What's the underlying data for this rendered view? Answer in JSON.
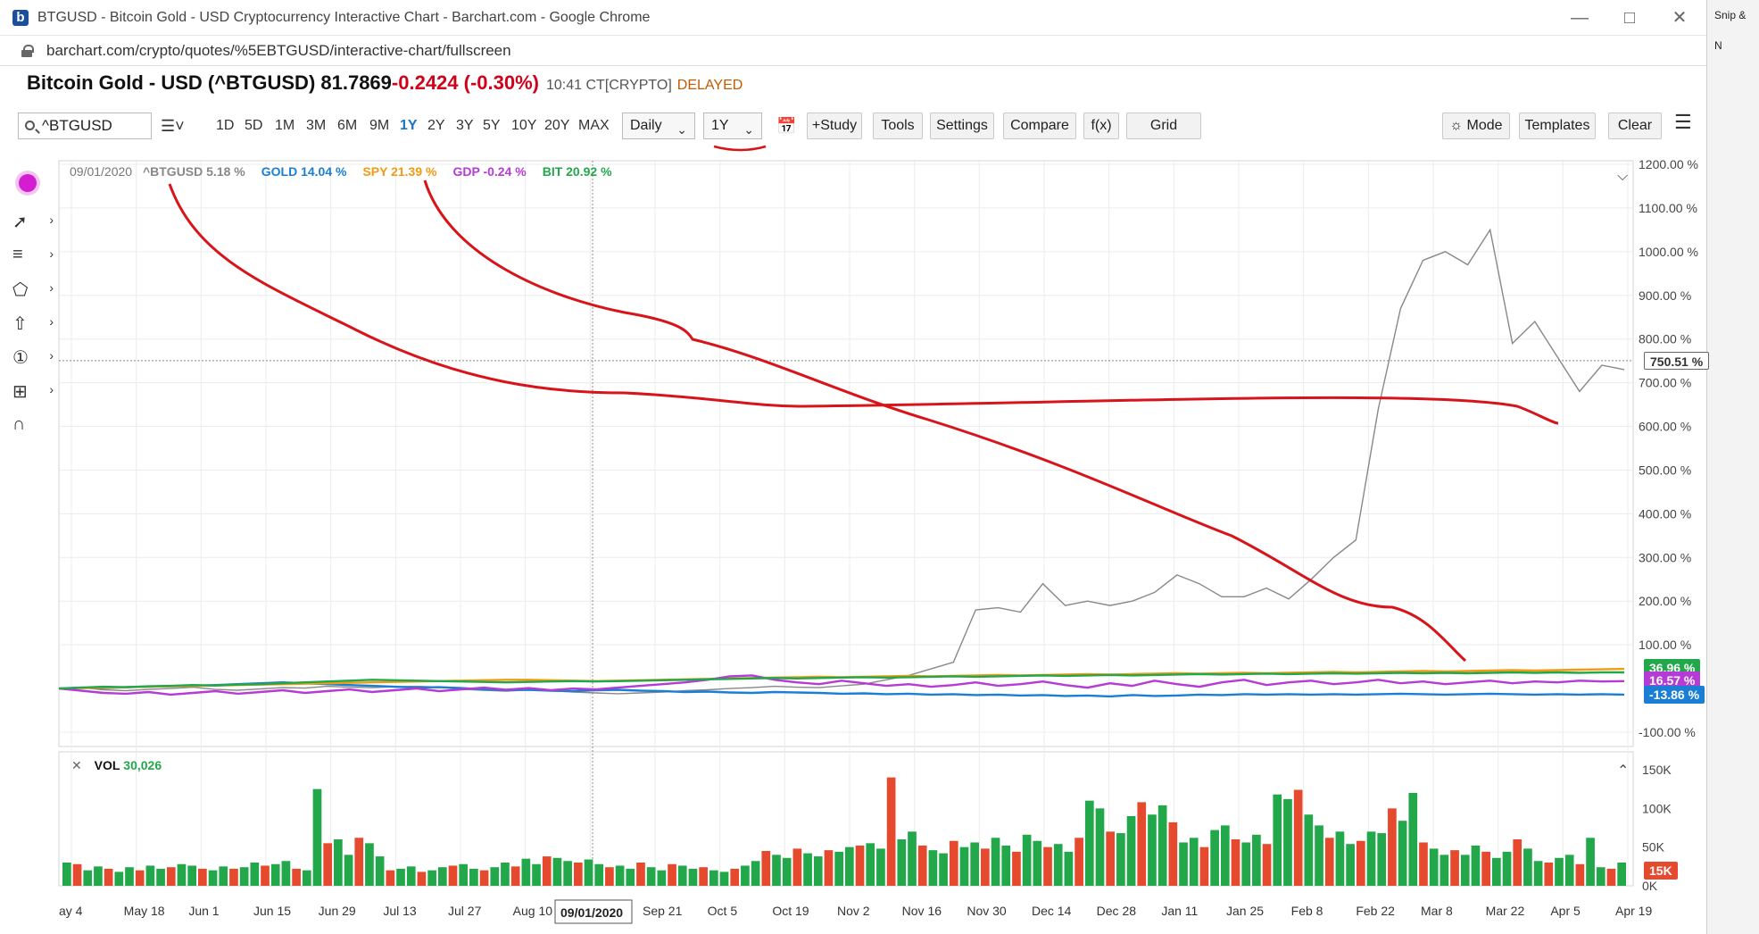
{
  "browser": {
    "tab_title": "BTGUSD - Bitcoin Gold - USD Cryptocurrency Interactive Chart - Barchart.com - Google Chrome",
    "url": "barchart.com/crypto/quotes/%5EBTGUSD/interactive-chart/fullscreen",
    "favicon_letter": "b"
  },
  "side_window": {
    "line1": "Snip &",
    "line2": "N"
  },
  "quote": {
    "name": "Bitcoin Gold - USD (^BTGUSD) 81.7869",
    "change": "-0.2424 (-0.30%)",
    "time": "10:41 CT[CRYPTO]",
    "status": "DELAYED"
  },
  "toolbar": {
    "symbol": "^BTGUSD",
    "periods": [
      "1D",
      "5D",
      "1M",
      "3M",
      "6M",
      "9M",
      "1Y",
      "2Y",
      "3Y",
      "5Y",
      "10Y",
      "20Y",
      "MAX"
    ],
    "active_period": "1Y",
    "interval": "Daily",
    "range": "1Y",
    "study": "+Study",
    "tools": "Tools",
    "settings": "Settings",
    "compare": "Compare",
    "fx": "f(x)",
    "grid": "Grid",
    "mode": "Mode",
    "templates": "Templates",
    "clear": "Clear"
  },
  "legend": {
    "date": "09/01/2020",
    "items": [
      {
        "label": "^BTGUSD 5.18 %",
        "color": "#888888"
      },
      {
        "label": "GOLD 14.04 %",
        "color": "#1a7fd4"
      },
      {
        "label": "SPY 21.39 %",
        "color": "#f39a12"
      },
      {
        "label": "GDP -0.24 %",
        "color": "#b63ad6"
      },
      {
        "label": "BIT 20.92 %",
        "color": "#22a84a"
      }
    ]
  },
  "chart_data": {
    "type": "line",
    "title": "",
    "y_axis": {
      "unit": "%",
      "ticks": [
        "1200.00 %",
        "1100.00 %",
        "1000.00 %",
        "900.00 %",
        "800.00 %",
        "700.00 %",
        "600.00 %",
        "500.00 %",
        "400.00 %",
        "300.00 %",
        "200.00 %",
        "100.00 %",
        "-100.00 %"
      ],
      "ylim": [
        -100,
        1200
      ]
    },
    "x_axis": {
      "ticks": [
        "ay 4",
        "May 18",
        "Jun 1",
        "Jun 15",
        "Jun 29",
        "Jul 13",
        "Jul 27",
        "Aug 10",
        "Au",
        "Sep 21",
        "Oct 5",
        "Oct 19",
        "Nov 2",
        "Nov 16",
        "Nov 30",
        "Dec 14",
        "Dec 28",
        "Jan 11",
        "Jan 25",
        "Feb 8",
        "Feb 22",
        "Mar 8",
        "Mar 22",
        "Apr 5",
        "Apr 19"
      ],
      "cursor_label": "09/01/2020"
    },
    "crosshair_value": "750.51 %",
    "badges": [
      {
        "label": "750.51 %",
        "color": "#ffffff",
        "text": "#333333"
      },
      {
        "label": "36.96 %",
        "color": "#22a84a",
        "text": "#ffffff"
      },
      {
        "label": "16.57 %",
        "color": "#b63ad6",
        "text": "#ffffff"
      },
      {
        "label": "-13.86 %",
        "color": "#1a7fd4",
        "text": "#ffffff"
      }
    ],
    "series": [
      {
        "name": "^BTGUSD",
        "color": "#888888",
        "values": [
          0,
          2,
          -3,
          -5,
          -2,
          0,
          3,
          -2,
          -4,
          -1,
          2,
          1,
          5,
          3,
          2,
          4,
          5,
          3,
          -2,
          -4,
          -6,
          -3,
          -5,
          -8,
          -10,
          -12,
          -10,
          -8,
          -5,
          -3,
          0,
          2,
          5,
          3,
          2,
          6,
          10,
          20,
          30,
          45,
          60,
          180,
          185,
          175,
          240,
          190,
          200,
          190,
          200,
          220,
          260,
          240,
          210,
          210,
          230,
          205,
          250,
          300,
          340,
          640,
          870,
          980,
          1000,
          970,
          1050,
          790,
          840,
          760,
          680,
          740,
          730
        ]
      },
      {
        "name": "GOLD",
        "color": "#1a7fd4",
        "values": [
          0,
          2,
          1,
          3,
          4,
          5,
          6,
          8,
          10,
          12,
          14,
          12,
          10,
          8,
          6,
          4,
          2,
          3,
          1,
          -2,
          -4,
          -3,
          -5,
          -6,
          -4,
          -3,
          -5,
          -6,
          -8,
          -7,
          -9,
          -10,
          -8,
          -9,
          -10,
          -12,
          -11,
          -13,
          -12,
          -14,
          -13,
          -15,
          -14,
          -16,
          -15,
          -17,
          -16,
          -18,
          -15,
          -17,
          -16,
          -14,
          -15,
          -13,
          -14,
          -13,
          -14,
          -13,
          -14,
          -13,
          -12,
          -13,
          -14,
          -13,
          -12,
          -13,
          -14,
          -13,
          -14,
          -13,
          -14
        ]
      },
      {
        "name": "SPY",
        "color": "#f39a12",
        "values": [
          0,
          1,
          2,
          3,
          4,
          5,
          6,
          7,
          8,
          9,
          10,
          11,
          12,
          13,
          14,
          15,
          16,
          17,
          18,
          19,
          20,
          20,
          19,
          18,
          17,
          18,
          19,
          20,
          21,
          22,
          23,
          24,
          25,
          26,
          27,
          26,
          27,
          28,
          29,
          28,
          29,
          30,
          31,
          30,
          31,
          32,
          33,
          32,
          33,
          34,
          35,
          34,
          35,
          36,
          35,
          36,
          37,
          38,
          37,
          38,
          39,
          40,
          39,
          40,
          41,
          42,
          41,
          42,
          43,
          44,
          45
        ]
      },
      {
        "name": "GDP",
        "color": "#b63ad6",
        "values": [
          0,
          -5,
          -10,
          -12,
          -8,
          -14,
          -10,
          -6,
          -12,
          -8,
          -4,
          -10,
          -6,
          -2,
          -8,
          -4,
          0,
          -6,
          -2,
          2,
          -3,
          1,
          -4,
          0,
          -2,
          2,
          6,
          10,
          14,
          20,
          28,
          30,
          20,
          14,
          10,
          18,
          12,
          6,
          10,
          4,
          8,
          14,
          6,
          10,
          16,
          8,
          2,
          12,
          6,
          18,
          10,
          4,
          14,
          20,
          8,
          14,
          18,
          10,
          14,
          20,
          12,
          16,
          10,
          14,
          18,
          12,
          16,
          14,
          18,
          16,
          17
        ]
      },
      {
        "name": "BIT",
        "color": "#22a84a",
        "values": [
          0,
          2,
          4,
          3,
          5,
          6,
          8,
          7,
          9,
          10,
          12,
          14,
          16,
          18,
          20,
          19,
          18,
          17,
          16,
          15,
          14,
          15,
          16,
          17,
          16,
          17,
          18,
          19,
          20,
          21,
          22,
          23,
          24,
          23,
          24,
          25,
          26,
          25,
          26,
          27,
          28,
          27,
          28,
          29,
          30,
          29,
          30,
          31,
          30,
          31,
          32,
          33,
          32,
          33,
          34,
          33,
          34,
          35,
          34,
          35,
          36,
          35,
          36,
          35,
          36,
          37,
          36,
          37,
          36,
          37,
          37
        ]
      }
    ],
    "volume": {
      "label": "VOL",
      "value": "30,026",
      "ticks": [
        "150K",
        "100K",
        "50K",
        "0K"
      ],
      "ylim": [
        0,
        150
      ],
      "last_badge": "15K",
      "up_color": "#22a84a",
      "down_color": "#e64a2e",
      "values": [
        30,
        28,
        20,
        25,
        22,
        18,
        24,
        20,
        26,
        22,
        24,
        28,
        26,
        22,
        20,
        25,
        22,
        24,
        30,
        26,
        28,
        32,
        22,
        20,
        125,
        55,
        60,
        40,
        62,
        55,
        38,
        20,
        22,
        25,
        18,
        20,
        24,
        26,
        28,
        22,
        20,
        24,
        30,
        25,
        35,
        28,
        38,
        36,
        32,
        30,
        34,
        28,
        24,
        26,
        22,
        30,
        24,
        20,
        28,
        26,
        22,
        24,
        20,
        18,
        22,
        26,
        32,
        45,
        40,
        36,
        48,
        42,
        38,
        46,
        44,
        50,
        52,
        55,
        48,
        140,
        60,
        70,
        52,
        46,
        42,
        58,
        50,
        56,
        48,
        62,
        52,
        44,
        66,
        58,
        50,
        54,
        44,
        62,
        110,
        100,
        70,
        68,
        90,
        108,
        92,
        104,
        82,
        56,
        62,
        50,
        72,
        78,
        60,
        56,
        66,
        54,
        118,
        112,
        124,
        92,
        78,
        62,
        70,
        54,
        58,
        70,
        68,
        100,
        84,
        120,
        56,
        48,
        40,
        46,
        40,
        52,
        44,
        36,
        44,
        60,
        48,
        32,
        30,
        36,
        40,
        28,
        62,
        24,
        22,
        30
      ]
    },
    "annotations": "hand-drawn red curves"
  }
}
